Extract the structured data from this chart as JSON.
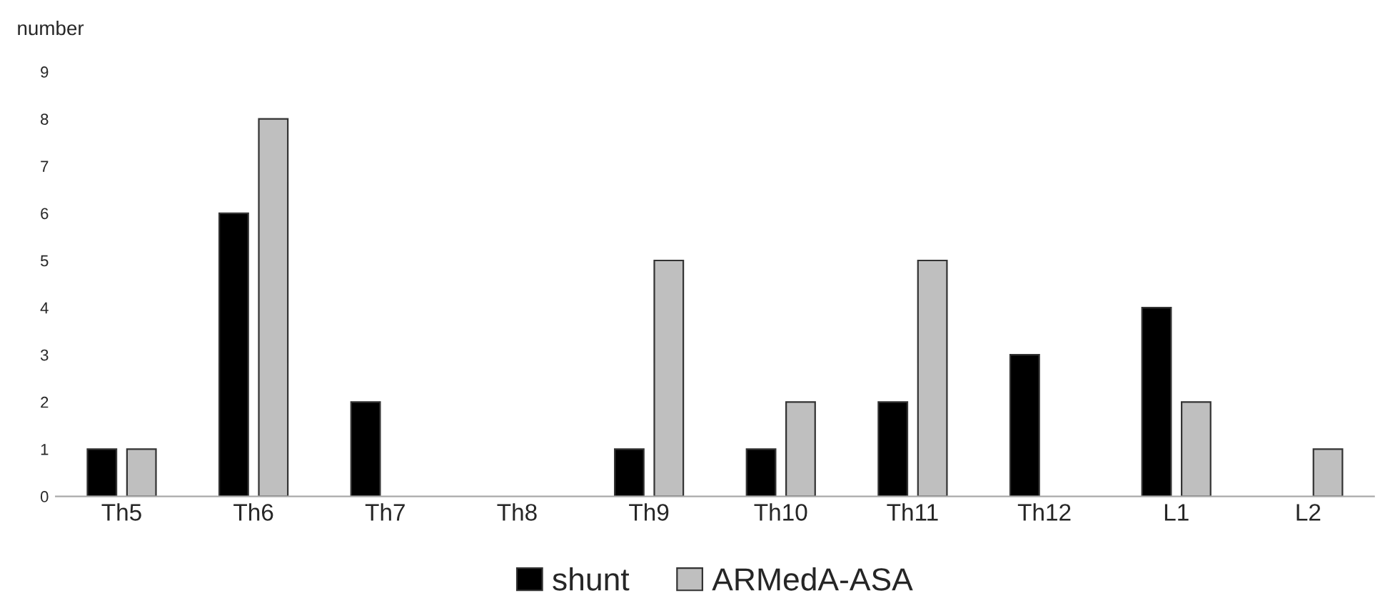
{
  "chart_data": {
    "type": "bar",
    "ylabel": "number",
    "categories": [
      "Th5",
      "Th6",
      "Th7",
      "Th8",
      "Th9",
      "Th10",
      "Th11",
      "Th12",
      "L1",
      "L2"
    ],
    "series": [
      {
        "name": "shunt",
        "color": "#000000",
        "values": [
          1,
          6,
          2,
          0,
          1,
          1,
          2,
          3,
          4,
          0
        ]
      },
      {
        "name": "ARMedA-ASA",
        "color": "#bfbfbf",
        "values": [
          1,
          8,
          0,
          0,
          5,
          2,
          5,
          0,
          2,
          1
        ]
      }
    ],
    "ylim": [
      0,
      9
    ],
    "yticks": [
      0,
      1,
      2,
      3,
      4,
      5,
      6,
      7,
      8,
      9
    ],
    "grid": false,
    "legend": "bottom"
  }
}
